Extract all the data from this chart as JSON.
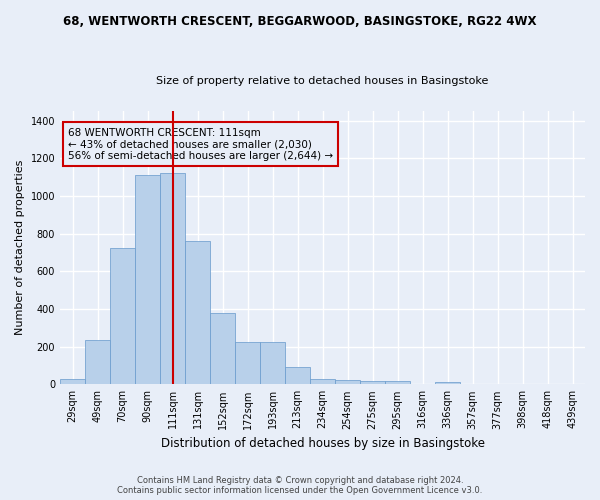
{
  "title1": "68, WENTWORTH CRESCENT, BEGGARWOOD, BASINGSTOKE, RG22 4WX",
  "title2": "Size of property relative to detached houses in Basingstoke",
  "xlabel": "Distribution of detached houses by size in Basingstoke",
  "ylabel": "Number of detached properties",
  "footer1": "Contains HM Land Registry data © Crown copyright and database right 2024.",
  "footer2": "Contains public sector information licensed under the Open Government Licence v3.0.",
  "annotation_line1": "68 WENTWORTH CRESCENT: 111sqm",
  "annotation_line2": "← 43% of detached houses are smaller (2,030)",
  "annotation_line3": "56% of semi-detached houses are larger (2,644) →",
  "bar_labels": [
    "29sqm",
    "49sqm",
    "70sqm",
    "90sqm",
    "111sqm",
    "131sqm",
    "152sqm",
    "172sqm",
    "193sqm",
    "213sqm",
    "234sqm",
    "254sqm",
    "275sqm",
    "295sqm",
    "316sqm",
    "336sqm",
    "357sqm",
    "377sqm",
    "398sqm",
    "418sqm",
    "439sqm"
  ],
  "bar_values": [
    30,
    235,
    725,
    1110,
    1120,
    760,
    380,
    225,
    225,
    90,
    30,
    25,
    20,
    15,
    0,
    10,
    0,
    0,
    0,
    0,
    0
  ],
  "bar_color": "#b8d0ea",
  "bar_edge_color": "#6699cc",
  "highlight_bar_index": 4,
  "vline_color": "#cc0000",
  "ylim": [
    0,
    1450
  ],
  "yticks": [
    0,
    200,
    400,
    600,
    800,
    1000,
    1200,
    1400
  ],
  "bg_color": "#e8eef8",
  "grid_color": "#ffffff",
  "annotation_box_color": "#cc0000",
  "title1_fontsize": 8.5,
  "title2_fontsize": 8.0,
  "ylabel_fontsize": 8.0,
  "xlabel_fontsize": 8.5,
  "tick_fontsize": 7.0,
  "footer_fontsize": 6.0,
  "ann_fontsize": 7.5
}
